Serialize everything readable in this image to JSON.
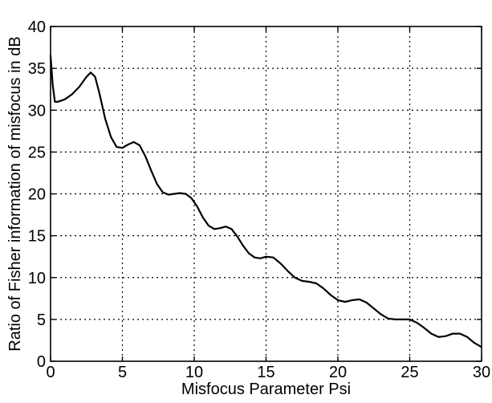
{
  "chart_data": {
    "type": "line",
    "xlabel": "Misfocus Parameter Psi",
    "ylabel": "Ratio of Fisher information of misfocus in dB",
    "xlim": [
      0,
      30
    ],
    "ylim": [
      0,
      40
    ],
    "x_ticks": [
      0,
      5,
      10,
      15,
      20,
      25,
      30
    ],
    "y_ticks": [
      0,
      5,
      10,
      15,
      20,
      25,
      30,
      35,
      40
    ],
    "grid": true,
    "series": [
      {
        "x": [
          0,
          0.15,
          0.3,
          0.5,
          1.0,
          1.5,
          2.0,
          2.5,
          2.8,
          3.1,
          3.4,
          3.8,
          4.2,
          4.6,
          5.0,
          5.4,
          5.8,
          6.2,
          6.6,
          7.0,
          7.4,
          7.8,
          8.2,
          8.6,
          9.0,
          9.4,
          9.8,
          10.2,
          10.6,
          11.0,
          11.4,
          11.8,
          12.2,
          12.6,
          13.0,
          13.4,
          13.8,
          14.2,
          14.6,
          15.0,
          15.5,
          16.0,
          16.5,
          17.0,
          17.5,
          18.0,
          18.5,
          19.0,
          19.5,
          20.0,
          20.5,
          21.0,
          21.5,
          22.0,
          22.5,
          23.0,
          23.5,
          24.0,
          24.5,
          25.0,
          25.5,
          26.0,
          26.5,
          27.0,
          27.5,
          28.0,
          28.5,
          29.0,
          29.5,
          30.0
        ],
        "y": [
          36.5,
          33.0,
          31.0,
          31.0,
          31.3,
          31.9,
          32.8,
          34.0,
          34.5,
          34.0,
          32.0,
          29.0,
          26.8,
          25.6,
          25.5,
          25.9,
          26.2,
          25.8,
          24.5,
          22.8,
          21.2,
          20.2,
          19.9,
          20.0,
          20.1,
          20.0,
          19.5,
          18.5,
          17.2,
          16.2,
          15.8,
          15.9,
          16.1,
          15.8,
          14.9,
          13.8,
          12.9,
          12.4,
          12.3,
          12.5,
          12.4,
          11.7,
          10.8,
          10.0,
          9.6,
          9.5,
          9.3,
          8.7,
          7.9,
          7.3,
          7.1,
          7.3,
          7.4,
          7.0,
          6.3,
          5.6,
          5.1,
          5.0,
          5.0,
          5.0,
          4.6,
          4.0,
          3.3,
          2.9,
          3.0,
          3.3,
          3.3,
          2.9,
          2.2,
          1.7
        ]
      }
    ]
  }
}
